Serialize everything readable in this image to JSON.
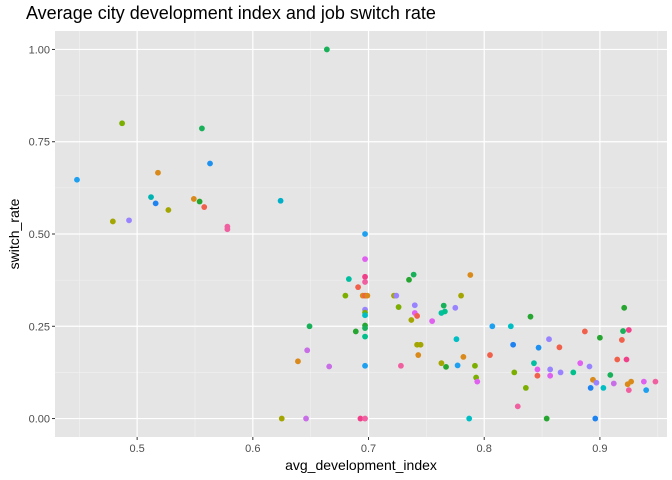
{
  "chart_data": {
    "type": "scatter",
    "title": "Average city development index and job switch rate",
    "xlabel": "avg_development_index",
    "ylabel": "switch_rate",
    "xlim": [
      0.429,
      0.958
    ],
    "ylim": [
      -0.05,
      1.05
    ],
    "x_ticks": [
      0.5,
      0.6,
      0.7,
      0.8,
      0.9
    ],
    "x_tick_labels": [
      "0.5",
      "0.6",
      "0.7",
      "0.8",
      "0.9"
    ],
    "y_ticks": [
      0,
      0.25,
      0.5,
      0.75,
      1
    ],
    "y_tick_labels": [
      "0.00",
      "0.25",
      "0.50",
      "0.75",
      "1.00"
    ],
    "grid": true,
    "legend": "none",
    "background": "#e5e5e5",
    "points": [
      {
        "x": 0.448,
        "y": 0.647,
        "color": "#1ea0f0"
      },
      {
        "x": 0.479,
        "y": 0.534,
        "color": "#a3a500"
      },
      {
        "x": 0.487,
        "y": 0.8,
        "color": "#7cae00"
      },
      {
        "x": 0.493,
        "y": 0.537,
        "color": "#9a83ff"
      },
      {
        "x": 0.512,
        "y": 0.6,
        "color": "#00b3b3"
      },
      {
        "x": 0.516,
        "y": 0.583,
        "color": "#1e83f0"
      },
      {
        "x": 0.518,
        "y": 0.666,
        "color": "#d98a1a"
      },
      {
        "x": 0.527,
        "y": 0.565,
        "color": "#a3a500"
      },
      {
        "x": 0.549,
        "y": 0.595,
        "color": "#d98a1a"
      },
      {
        "x": 0.554,
        "y": 0.588,
        "color": "#26a630"
      },
      {
        "x": 0.556,
        "y": 0.786,
        "color": "#19b05a"
      },
      {
        "x": 0.558,
        "y": 0.573,
        "color": "#f0604a"
      },
      {
        "x": 0.563,
        "y": 0.691,
        "color": "#1e90f0"
      },
      {
        "x": 0.578,
        "y": 0.52,
        "color": "#f060a0"
      },
      {
        "x": 0.578,
        "y": 0.513,
        "color": "#f060a0"
      },
      {
        "x": 0.624,
        "y": 0.59,
        "color": "#00b0c8"
      },
      {
        "x": 0.625,
        "y": 0.0,
        "color": "#a3a500"
      },
      {
        "x": 0.639,
        "y": 0.155,
        "color": "#d98a1a"
      },
      {
        "x": 0.646,
        "y": 0.0,
        "color": "#c86ee6"
      },
      {
        "x": 0.647,
        "y": 0.185,
        "color": "#c86ee6"
      },
      {
        "x": 0.649,
        "y": 0.25,
        "color": "#19b05a"
      },
      {
        "x": 0.664,
        "y": 1.0,
        "color": "#19b05a"
      },
      {
        "x": 0.666,
        "y": 0.141,
        "color": "#c86ee6"
      },
      {
        "x": 0.68,
        "y": 0.333,
        "color": "#7cae00"
      },
      {
        "x": 0.683,
        "y": 0.378,
        "color": "#00bfa0"
      },
      {
        "x": 0.689,
        "y": 0.236,
        "color": "#26a630"
      },
      {
        "x": 0.691,
        "y": 0.356,
        "color": "#f0604a"
      },
      {
        "x": 0.693,
        "y": 0.0,
        "color": "#f0408a"
      },
      {
        "x": 0.695,
        "y": 0.333,
        "color": "#d98a1a"
      },
      {
        "x": 0.697,
        "y": 0.5,
        "color": "#1ea0f0"
      },
      {
        "x": 0.697,
        "y": 0.432,
        "color": "#e060f0"
      },
      {
        "x": 0.697,
        "y": 0.384,
        "color": "#f0408a"
      },
      {
        "x": 0.697,
        "y": 0.37,
        "color": "#f060a0"
      },
      {
        "x": 0.697,
        "y": 0.333,
        "color": "#f0604a"
      },
      {
        "x": 0.697,
        "y": 0.295,
        "color": "#9a83ff"
      },
      {
        "x": 0.697,
        "y": 0.287,
        "color": "#7cae00"
      },
      {
        "x": 0.697,
        "y": 0.28,
        "color": "#00bfc4"
      },
      {
        "x": 0.697,
        "y": 0.252,
        "color": "#26a630"
      },
      {
        "x": 0.697,
        "y": 0.245,
        "color": "#19b05a"
      },
      {
        "x": 0.697,
        "y": 0.222,
        "color": "#00c08b"
      },
      {
        "x": 0.697,
        "y": 0.143,
        "color": "#1ea0f0"
      },
      {
        "x": 0.697,
        "y": 0.0,
        "color": "#f060a0"
      },
      {
        "x": 0.699,
        "y": 0.333,
        "color": "#d98a1a"
      },
      {
        "x": 0.722,
        "y": 0.333,
        "color": "#a3a500"
      },
      {
        "x": 0.724,
        "y": 0.333,
        "color": "#9a83ff"
      },
      {
        "x": 0.726,
        "y": 0.302,
        "color": "#7cae00"
      },
      {
        "x": 0.728,
        "y": 0.143,
        "color": "#f060a0"
      },
      {
        "x": 0.735,
        "y": 0.376,
        "color": "#26a630"
      },
      {
        "x": 0.737,
        "y": 0.267,
        "color": "#a3a500"
      },
      {
        "x": 0.739,
        "y": 0.39,
        "color": "#19b05a"
      },
      {
        "x": 0.74,
        "y": 0.307,
        "color": "#9a83ff"
      },
      {
        "x": 0.74,
        "y": 0.286,
        "color": "#e060f0"
      },
      {
        "x": 0.742,
        "y": 0.278,
        "color": "#f0604a"
      },
      {
        "x": 0.742,
        "y": 0.2,
        "color": "#a3a500"
      },
      {
        "x": 0.743,
        "y": 0.172,
        "color": "#d98a1a"
      },
      {
        "x": 0.745,
        "y": 0.2,
        "color": "#a3a500"
      },
      {
        "x": 0.755,
        "y": 0.264,
        "color": "#e060f0"
      },
      {
        "x": 0.763,
        "y": 0.15,
        "color": "#a3a500"
      },
      {
        "x": 0.763,
        "y": 0.286,
        "color": "#00bfa0"
      },
      {
        "x": 0.765,
        "y": 0.306,
        "color": "#19b05a"
      },
      {
        "x": 0.766,
        "y": 0.29,
        "color": "#00c08b"
      },
      {
        "x": 0.767,
        "y": 0.14,
        "color": "#26a630"
      },
      {
        "x": 0.775,
        "y": 0.3,
        "color": "#9a83ff"
      },
      {
        "x": 0.776,
        "y": 0.215,
        "color": "#00bfc4"
      },
      {
        "x": 0.777,
        "y": 0.144,
        "color": "#1ea0f0"
      },
      {
        "x": 0.78,
        "y": 0.333,
        "color": "#a3a500"
      },
      {
        "x": 0.782,
        "y": 0.167,
        "color": "#d98a1a"
      },
      {
        "x": 0.787,
        "y": 0.0,
        "color": "#00bfc4"
      },
      {
        "x": 0.788,
        "y": 0.389,
        "color": "#d98a1a"
      },
      {
        "x": 0.792,
        "y": 0.143,
        "color": "#7cae00"
      },
      {
        "x": 0.793,
        "y": 0.111,
        "color": "#7cae00"
      },
      {
        "x": 0.794,
        "y": 0.1,
        "color": "#e060f0"
      },
      {
        "x": 0.805,
        "y": 0.172,
        "color": "#f0604a"
      },
      {
        "x": 0.807,
        "y": 0.25,
        "color": "#1ea0f0"
      },
      {
        "x": 0.823,
        "y": 0.25,
        "color": "#00bfc4"
      },
      {
        "x": 0.825,
        "y": 0.2,
        "color": "#1e83f0"
      },
      {
        "x": 0.826,
        "y": 0.125,
        "color": "#7cae00"
      },
      {
        "x": 0.829,
        "y": 0.033,
        "color": "#f060a0"
      },
      {
        "x": 0.836,
        "y": 0.083,
        "color": "#7cae00"
      },
      {
        "x": 0.84,
        "y": 0.276,
        "color": "#26a630"
      },
      {
        "x": 0.843,
        "y": 0.15,
        "color": "#00bfa0"
      },
      {
        "x": 0.846,
        "y": 0.133,
        "color": "#e060f0"
      },
      {
        "x": 0.846,
        "y": 0.116,
        "color": "#f0604a"
      },
      {
        "x": 0.847,
        "y": 0.192,
        "color": "#1e90f0"
      },
      {
        "x": 0.854,
        "y": 0.0,
        "color": "#26a630"
      },
      {
        "x": 0.856,
        "y": 0.215,
        "color": "#9a83ff"
      },
      {
        "x": 0.857,
        "y": 0.133,
        "color": "#9a83ff"
      },
      {
        "x": 0.857,
        "y": 0.116,
        "color": "#e060f0"
      },
      {
        "x": 0.865,
        "y": 0.193,
        "color": "#f0604a"
      },
      {
        "x": 0.866,
        "y": 0.125,
        "color": "#9a83ff"
      },
      {
        "x": 0.877,
        "y": 0.125,
        "color": "#00c08b"
      },
      {
        "x": 0.883,
        "y": 0.15,
        "color": "#e060f0"
      },
      {
        "x": 0.887,
        "y": 0.236,
        "color": "#f0604a"
      },
      {
        "x": 0.891,
        "y": 0.141,
        "color": "#9a83ff"
      },
      {
        "x": 0.892,
        "y": 0.083,
        "color": "#1e83f0"
      },
      {
        "x": 0.894,
        "y": 0.105,
        "color": "#d98a1a"
      },
      {
        "x": 0.896,
        "y": 0.0,
        "color": "#1e83f0"
      },
      {
        "x": 0.897,
        "y": 0.097,
        "color": "#9a83ff"
      },
      {
        "x": 0.9,
        "y": 0.219,
        "color": "#26a630"
      },
      {
        "x": 0.903,
        "y": 0.083,
        "color": "#00bfc4"
      },
      {
        "x": 0.909,
        "y": 0.118,
        "color": "#19b05a"
      },
      {
        "x": 0.912,
        "y": 0.095,
        "color": "#c86ee6"
      },
      {
        "x": 0.915,
        "y": 0.16,
        "color": "#f0604a"
      },
      {
        "x": 0.919,
        "y": 0.213,
        "color": "#f0604a"
      },
      {
        "x": 0.92,
        "y": 0.237,
        "color": "#19b05a"
      },
      {
        "x": 0.921,
        "y": 0.3,
        "color": "#26a630"
      },
      {
        "x": 0.923,
        "y": 0.16,
        "color": "#f0408a"
      },
      {
        "x": 0.924,
        "y": 0.093,
        "color": "#d98a1a"
      },
      {
        "x": 0.925,
        "y": 0.24,
        "color": "#f0408a"
      },
      {
        "x": 0.925,
        "y": 0.077,
        "color": "#f060a0"
      },
      {
        "x": 0.927,
        "y": 0.1,
        "color": "#d98a1a"
      },
      {
        "x": 0.938,
        "y": 0.1,
        "color": "#e060f0"
      },
      {
        "x": 0.94,
        "y": 0.077,
        "color": "#1ea0f0"
      },
      {
        "x": 0.948,
        "y": 0.1,
        "color": "#f060a0"
      }
    ]
  }
}
